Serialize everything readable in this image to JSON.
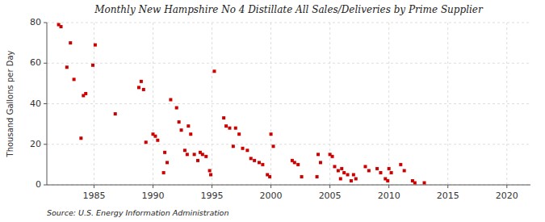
{
  "chart_data": {
    "type": "scatter",
    "title": "Monthly New Hampshire No 4 Distillate All Sales/Deliveries by Prime Supplier",
    "ylabel": "Thousand Gallons per Day",
    "source": "Source: U.S. Energy Information Administration",
    "color": "#cc0000",
    "marker": "square",
    "grid": true,
    "xlim": [
      1981,
      2022
    ],
    "ylim": [
      0,
      80
    ],
    "yticks": [
      0,
      20,
      40,
      60,
      80
    ],
    "xticks": [
      1985,
      1990,
      1995,
      2000,
      2005,
      2010,
      2015,
      2020
    ],
    "x": [
      1982.0,
      1982.2,
      1982.7,
      1983.0,
      1983.3,
      1983.9,
      1984.1,
      1984.3,
      1984.9,
      1985.1,
      1986.8,
      1988.8,
      1989.0,
      1989.2,
      1989.4,
      1990.0,
      1990.2,
      1990.4,
      1990.9,
      1991.0,
      1991.2,
      1991.5,
      1992.0,
      1992.2,
      1992.4,
      1992.7,
      1992.9,
      1993.0,
      1993.2,
      1993.5,
      1993.8,
      1994.0,
      1994.2,
      1994.5,
      1994.8,
      1994.9,
      1995.2,
      1996.0,
      1996.2,
      1996.5,
      1996.8,
      1997.0,
      1997.3,
      1997.6,
      1998.0,
      1998.3,
      1998.6,
      1999.0,
      1999.3,
      1999.7,
      1999.9,
      2000.0,
      2000.2,
      2001.8,
      2002.0,
      2002.3,
      2002.6,
      2003.9,
      2004.0,
      2004.2,
      2005.0,
      2005.2,
      2005.4,
      2005.7,
      2005.9,
      2006.0,
      2006.2,
      2006.5,
      2006.8,
      2007.0,
      2007.2,
      2008.0,
      2008.3,
      2009.0,
      2009.3,
      2009.7,
      2009.9,
      2010.0,
      2010.2,
      2011.0,
      2011.3,
      2012.0,
      2012.2,
      2013.0
    ],
    "values": [
      79,
      78,
      58,
      70,
      52,
      23,
      44,
      45,
      59,
      69,
      35,
      48,
      51,
      47,
      21,
      25,
      24,
      22,
      6,
      16,
      11,
      42,
      38,
      31,
      27,
      17,
      15,
      29,
      25,
      15,
      12,
      16,
      15,
      14,
      7,
      5,
      56,
      33,
      29,
      28,
      19,
      28,
      25,
      18,
      17,
      13,
      12,
      11,
      10,
      5,
      4,
      25,
      19,
      12,
      11,
      10,
      4,
      4,
      15,
      11,
      15,
      14,
      9,
      7,
      3,
      8,
      6,
      5,
      2,
      5,
      3,
      9,
      7,
      8,
      6,
      3,
      2,
      8,
      6,
      10,
      7,
      2,
      1,
      1
    ]
  }
}
